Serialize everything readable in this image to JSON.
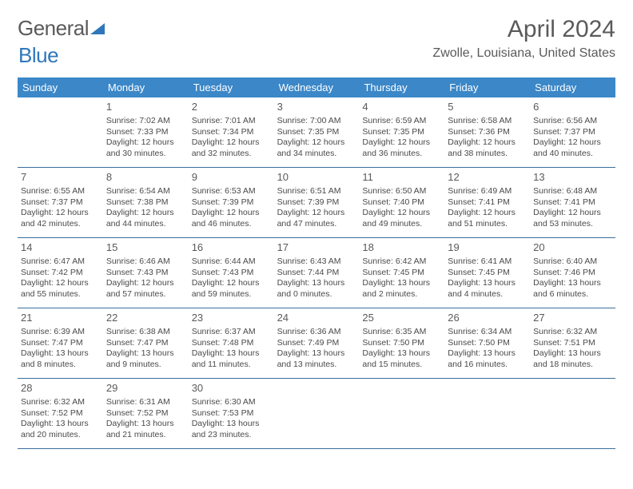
{
  "brand": {
    "part1": "General",
    "part2": "Blue"
  },
  "title": "April 2024",
  "location": "Zwolle, Louisiana, United States",
  "daysOfWeek": [
    "Sunday",
    "Monday",
    "Tuesday",
    "Wednesday",
    "Thursday",
    "Friday",
    "Saturday"
  ],
  "colors": {
    "headerBar": "#3b87c8",
    "rowBorder": "#3b6e9c",
    "text": "#4a4a4a",
    "brandBlue": "#2f77bb"
  },
  "startOffset": 1,
  "cells": [
    {
      "n": "1",
      "sr": "Sunrise: 7:02 AM",
      "ss": "Sunset: 7:33 PM",
      "d1": "Daylight: 12 hours",
      "d2": "and 30 minutes."
    },
    {
      "n": "2",
      "sr": "Sunrise: 7:01 AM",
      "ss": "Sunset: 7:34 PM",
      "d1": "Daylight: 12 hours",
      "d2": "and 32 minutes."
    },
    {
      "n": "3",
      "sr": "Sunrise: 7:00 AM",
      "ss": "Sunset: 7:35 PM",
      "d1": "Daylight: 12 hours",
      "d2": "and 34 minutes."
    },
    {
      "n": "4",
      "sr": "Sunrise: 6:59 AM",
      "ss": "Sunset: 7:35 PM",
      "d1": "Daylight: 12 hours",
      "d2": "and 36 minutes."
    },
    {
      "n": "5",
      "sr": "Sunrise: 6:58 AM",
      "ss": "Sunset: 7:36 PM",
      "d1": "Daylight: 12 hours",
      "d2": "and 38 minutes."
    },
    {
      "n": "6",
      "sr": "Sunrise: 6:56 AM",
      "ss": "Sunset: 7:37 PM",
      "d1": "Daylight: 12 hours",
      "d2": "and 40 minutes."
    },
    {
      "n": "7",
      "sr": "Sunrise: 6:55 AM",
      "ss": "Sunset: 7:37 PM",
      "d1": "Daylight: 12 hours",
      "d2": "and 42 minutes."
    },
    {
      "n": "8",
      "sr": "Sunrise: 6:54 AM",
      "ss": "Sunset: 7:38 PM",
      "d1": "Daylight: 12 hours",
      "d2": "and 44 minutes."
    },
    {
      "n": "9",
      "sr": "Sunrise: 6:53 AM",
      "ss": "Sunset: 7:39 PM",
      "d1": "Daylight: 12 hours",
      "d2": "and 46 minutes."
    },
    {
      "n": "10",
      "sr": "Sunrise: 6:51 AM",
      "ss": "Sunset: 7:39 PM",
      "d1": "Daylight: 12 hours",
      "d2": "and 47 minutes."
    },
    {
      "n": "11",
      "sr": "Sunrise: 6:50 AM",
      "ss": "Sunset: 7:40 PM",
      "d1": "Daylight: 12 hours",
      "d2": "and 49 minutes."
    },
    {
      "n": "12",
      "sr": "Sunrise: 6:49 AM",
      "ss": "Sunset: 7:41 PM",
      "d1": "Daylight: 12 hours",
      "d2": "and 51 minutes."
    },
    {
      "n": "13",
      "sr": "Sunrise: 6:48 AM",
      "ss": "Sunset: 7:41 PM",
      "d1": "Daylight: 12 hours",
      "d2": "and 53 minutes."
    },
    {
      "n": "14",
      "sr": "Sunrise: 6:47 AM",
      "ss": "Sunset: 7:42 PM",
      "d1": "Daylight: 12 hours",
      "d2": "and 55 minutes."
    },
    {
      "n": "15",
      "sr": "Sunrise: 6:46 AM",
      "ss": "Sunset: 7:43 PM",
      "d1": "Daylight: 12 hours",
      "d2": "and 57 minutes."
    },
    {
      "n": "16",
      "sr": "Sunrise: 6:44 AM",
      "ss": "Sunset: 7:43 PM",
      "d1": "Daylight: 12 hours",
      "d2": "and 59 minutes."
    },
    {
      "n": "17",
      "sr": "Sunrise: 6:43 AM",
      "ss": "Sunset: 7:44 PM",
      "d1": "Daylight: 13 hours",
      "d2": "and 0 minutes."
    },
    {
      "n": "18",
      "sr": "Sunrise: 6:42 AM",
      "ss": "Sunset: 7:45 PM",
      "d1": "Daylight: 13 hours",
      "d2": "and 2 minutes."
    },
    {
      "n": "19",
      "sr": "Sunrise: 6:41 AM",
      "ss": "Sunset: 7:45 PM",
      "d1": "Daylight: 13 hours",
      "d2": "and 4 minutes."
    },
    {
      "n": "20",
      "sr": "Sunrise: 6:40 AM",
      "ss": "Sunset: 7:46 PM",
      "d1": "Daylight: 13 hours",
      "d2": "and 6 minutes."
    },
    {
      "n": "21",
      "sr": "Sunrise: 6:39 AM",
      "ss": "Sunset: 7:47 PM",
      "d1": "Daylight: 13 hours",
      "d2": "and 8 minutes."
    },
    {
      "n": "22",
      "sr": "Sunrise: 6:38 AM",
      "ss": "Sunset: 7:47 PM",
      "d1": "Daylight: 13 hours",
      "d2": "and 9 minutes."
    },
    {
      "n": "23",
      "sr": "Sunrise: 6:37 AM",
      "ss": "Sunset: 7:48 PM",
      "d1": "Daylight: 13 hours",
      "d2": "and 11 minutes."
    },
    {
      "n": "24",
      "sr": "Sunrise: 6:36 AM",
      "ss": "Sunset: 7:49 PM",
      "d1": "Daylight: 13 hours",
      "d2": "and 13 minutes."
    },
    {
      "n": "25",
      "sr": "Sunrise: 6:35 AM",
      "ss": "Sunset: 7:50 PM",
      "d1": "Daylight: 13 hours",
      "d2": "and 15 minutes."
    },
    {
      "n": "26",
      "sr": "Sunrise: 6:34 AM",
      "ss": "Sunset: 7:50 PM",
      "d1": "Daylight: 13 hours",
      "d2": "and 16 minutes."
    },
    {
      "n": "27",
      "sr": "Sunrise: 6:32 AM",
      "ss": "Sunset: 7:51 PM",
      "d1": "Daylight: 13 hours",
      "d2": "and 18 minutes."
    },
    {
      "n": "28",
      "sr": "Sunrise: 6:32 AM",
      "ss": "Sunset: 7:52 PM",
      "d1": "Daylight: 13 hours",
      "d2": "and 20 minutes."
    },
    {
      "n": "29",
      "sr": "Sunrise: 6:31 AM",
      "ss": "Sunset: 7:52 PM",
      "d1": "Daylight: 13 hours",
      "d2": "and 21 minutes."
    },
    {
      "n": "30",
      "sr": "Sunrise: 6:30 AM",
      "ss": "Sunset: 7:53 PM",
      "d1": "Daylight: 13 hours",
      "d2": "and 23 minutes."
    }
  ]
}
